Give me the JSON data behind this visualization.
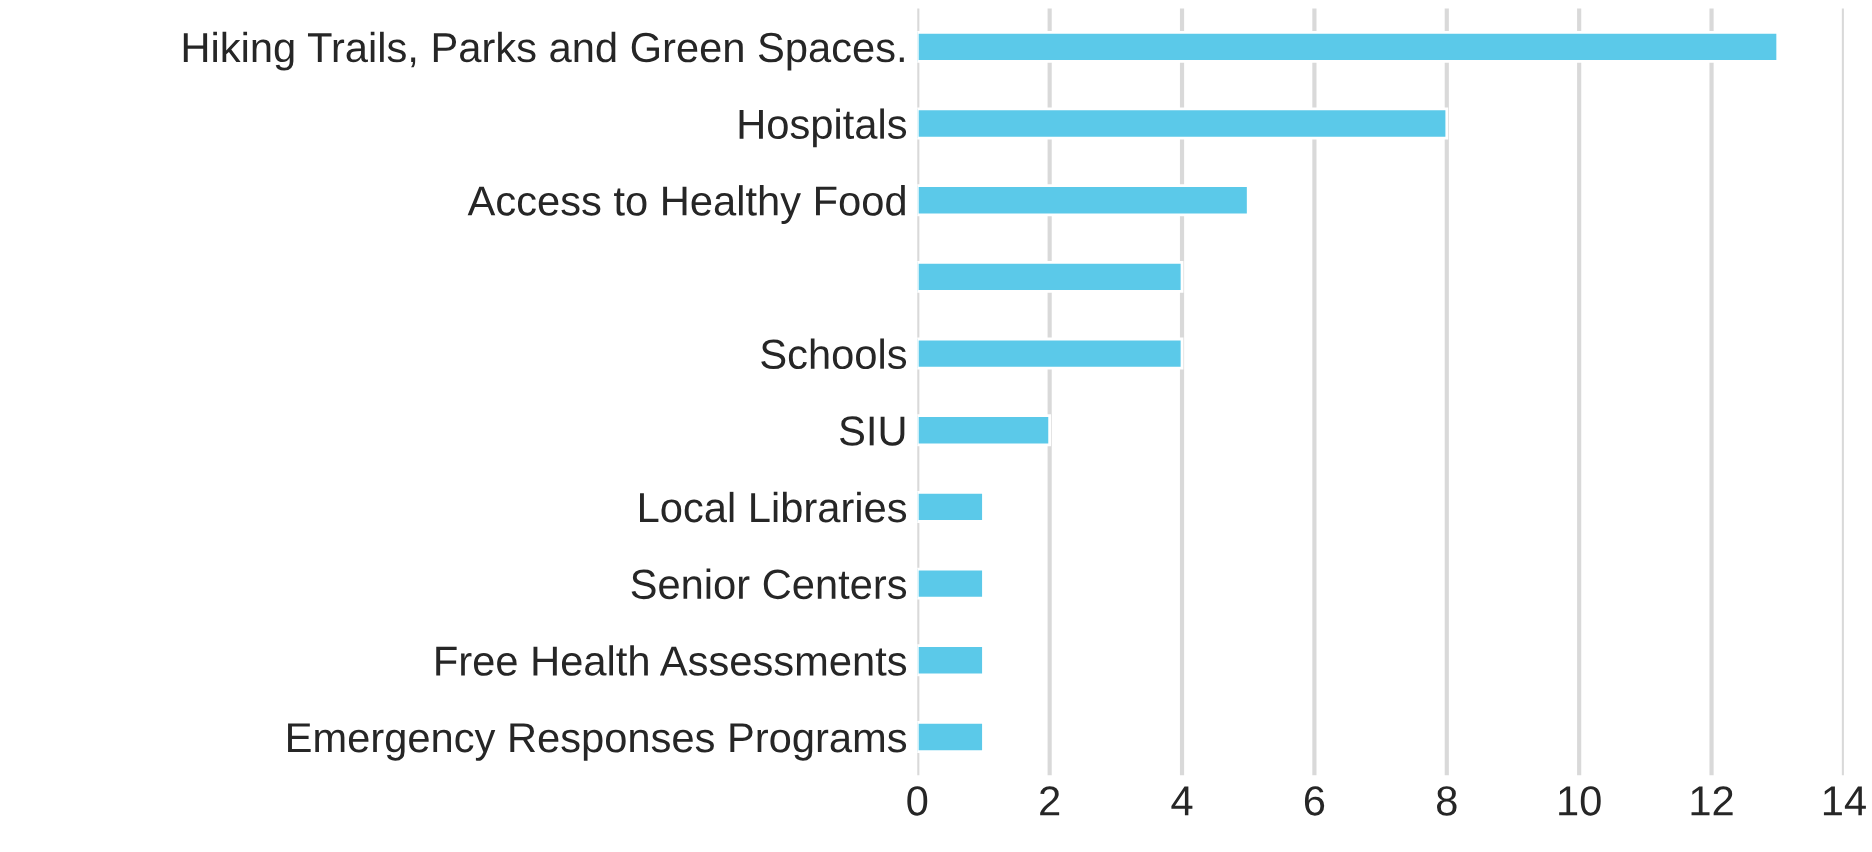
{
  "chart_data": {
    "type": "bar",
    "orientation": "horizontal",
    "categories": [
      "Hiking Trails, Parks and Green Spaces.",
      "Hospitals",
      "Access to Healthy Food",
      null,
      "Schools",
      "SIU",
      "Local Libraries",
      "Senior Centers",
      "Free Health Assessments",
      "Emergency Responses Programs"
    ],
    "values": [
      13,
      8,
      5,
      4,
      4,
      2,
      1,
      1,
      1,
      1
    ],
    "color": "#5bc9e9",
    "xlim": [
      0,
      14
    ],
    "xticks": [
      0,
      2,
      4,
      6,
      8,
      10,
      12,
      14
    ],
    "grid": "x",
    "legend": false
  }
}
